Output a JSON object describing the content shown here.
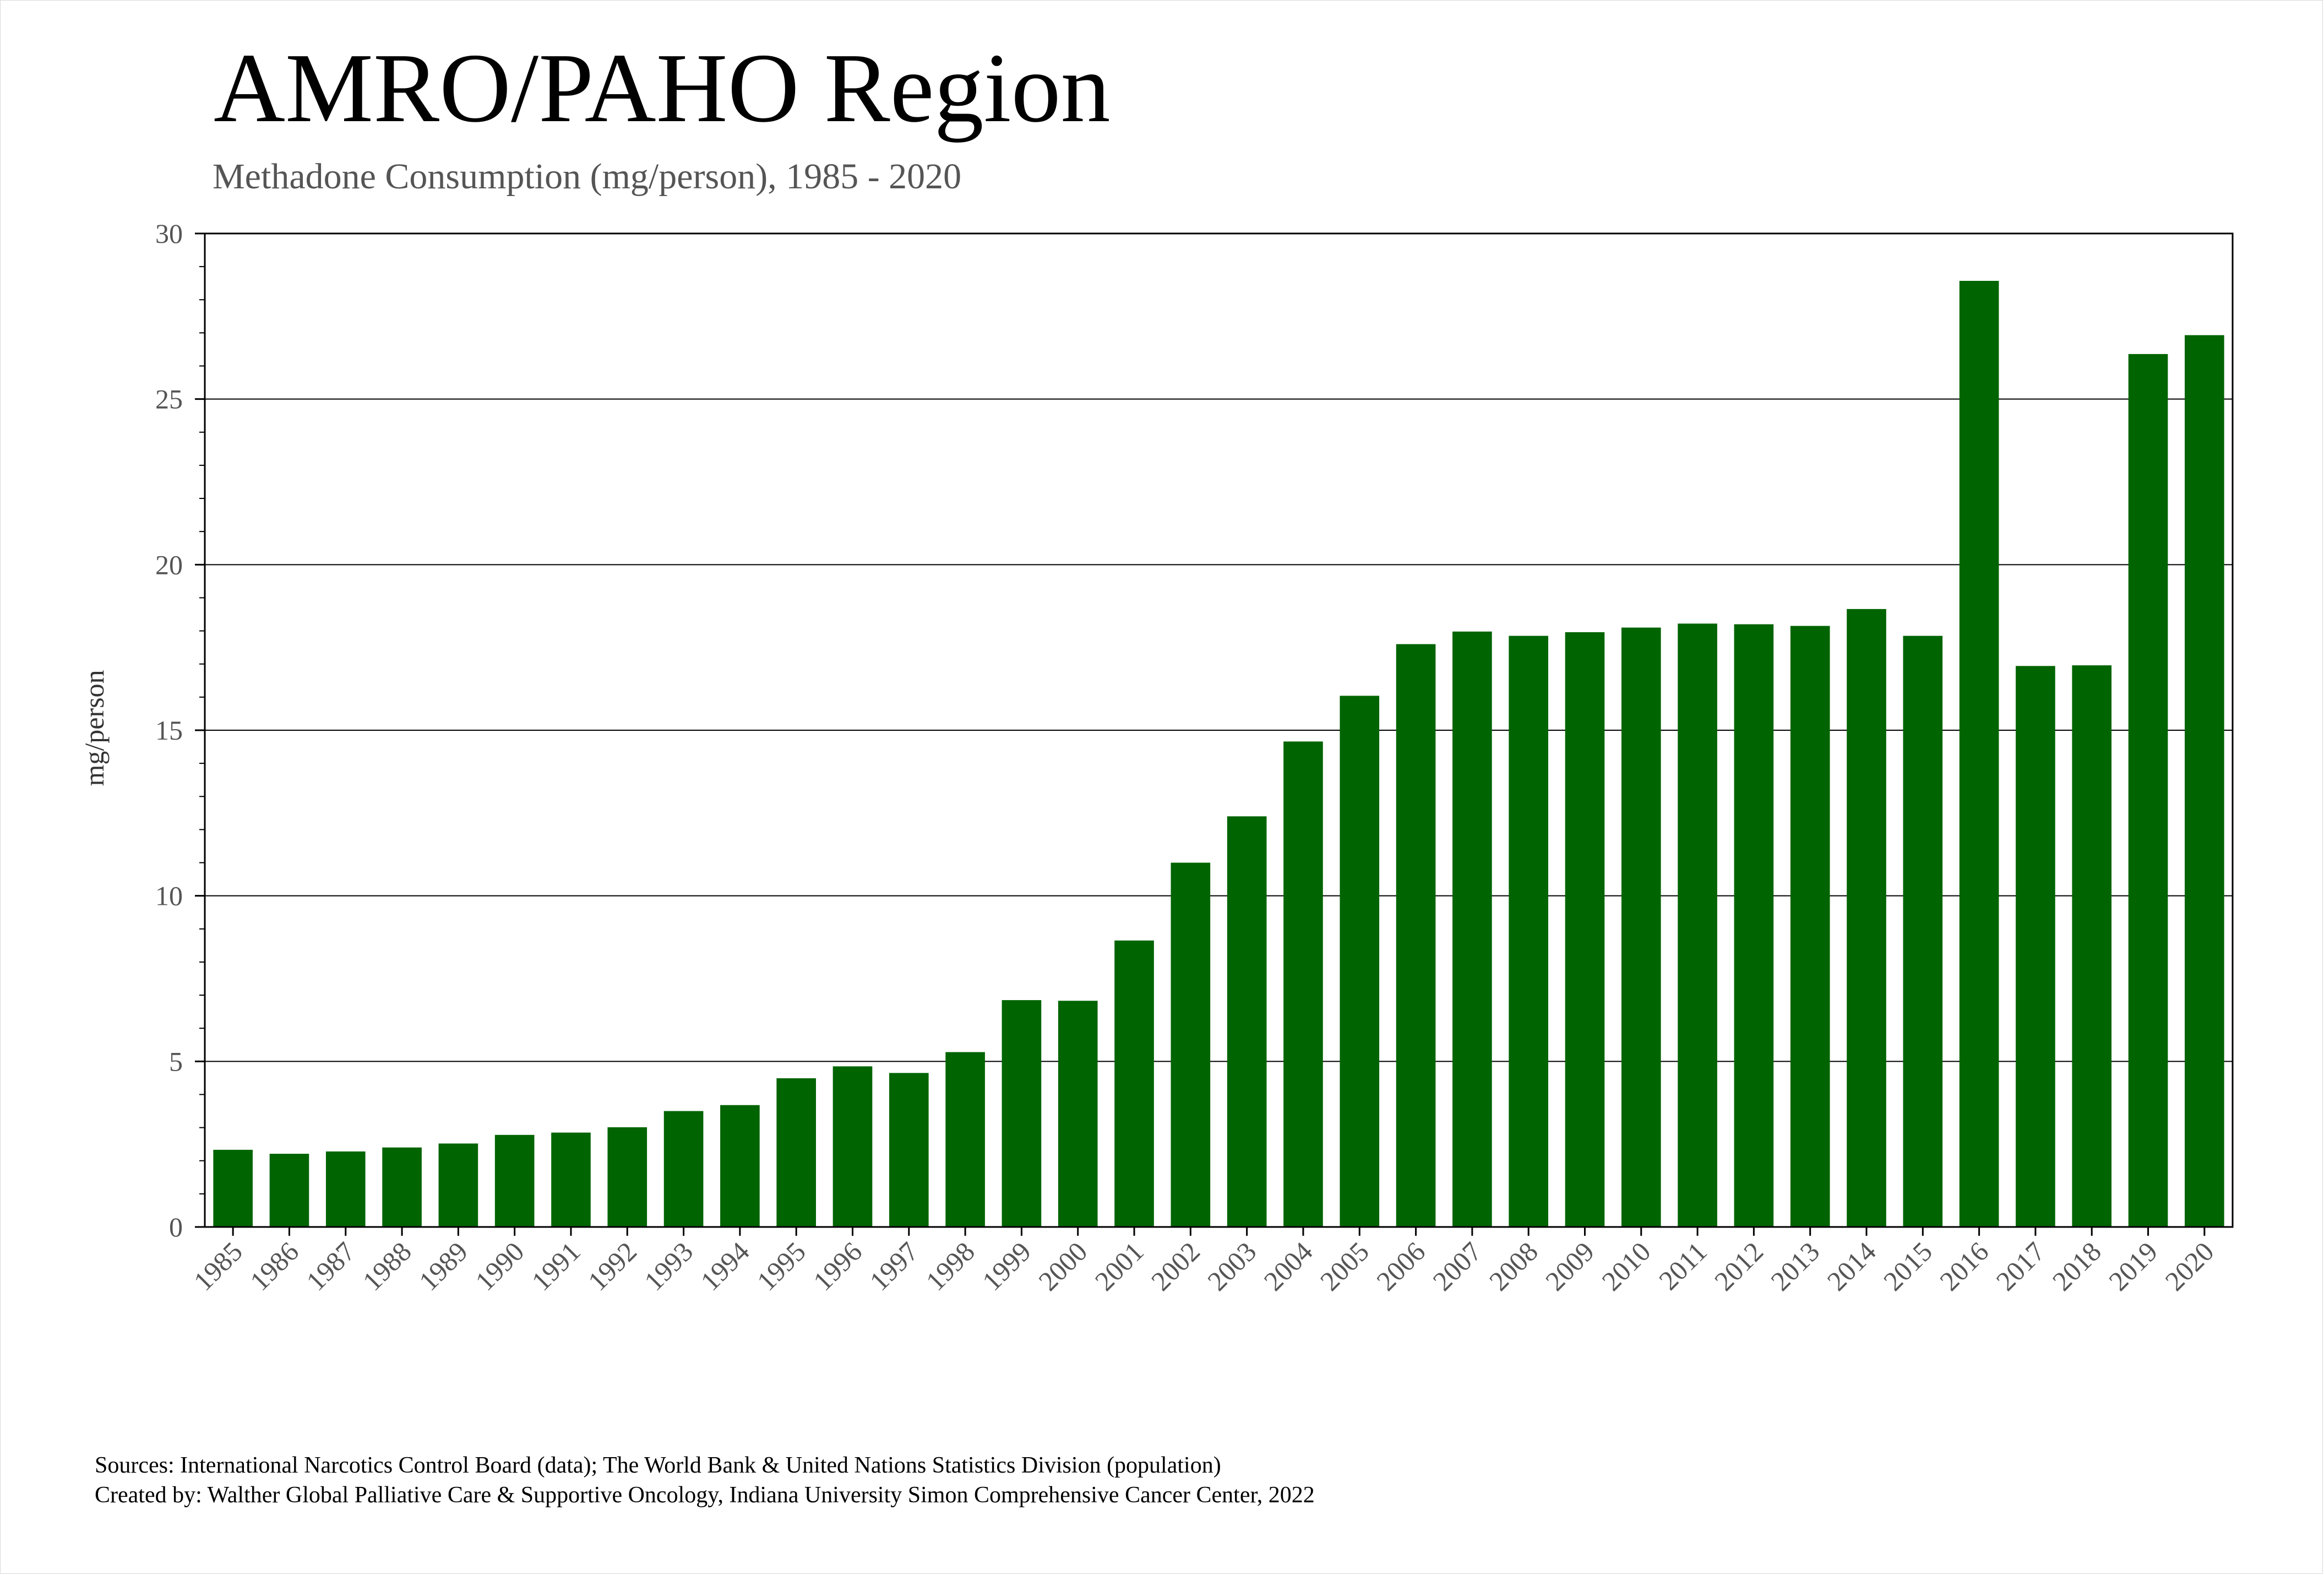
{
  "chart_data": {
    "type": "bar",
    "title": "AMRO/PAHO Region",
    "subtitle": "Methadone Consumption (mg/person), 1985 - 2020",
    "xlabel": "",
    "ylabel": "mg/person",
    "ylim": [
      0,
      30
    ],
    "yticks": [
      0,
      5,
      10,
      15,
      20,
      25,
      30
    ],
    "grid": true,
    "legend": "none",
    "bar_color": "#006400",
    "categories": [
      "1985",
      "1986",
      "1987",
      "1988",
      "1989",
      "1990",
      "1991",
      "1992",
      "1993",
      "1994",
      "1995",
      "1996",
      "1997",
      "1998",
      "1999",
      "2000",
      "2001",
      "2002",
      "2003",
      "2004",
      "2005",
      "2006",
      "2007",
      "2008",
      "2009",
      "2010",
      "2011",
      "2012",
      "2013",
      "2014",
      "2015",
      "2016",
      "2017",
      "2018",
      "2019",
      "2020"
    ],
    "values": [
      2.33,
      2.21,
      2.28,
      2.4,
      2.52,
      2.78,
      2.85,
      3.01,
      3.5,
      3.68,
      4.49,
      4.85,
      4.65,
      5.28,
      6.85,
      6.83,
      8.65,
      11.0,
      12.4,
      14.66,
      16.04,
      17.6,
      17.98,
      17.85,
      17.96,
      18.1,
      18.22,
      18.2,
      18.15,
      18.66,
      17.85,
      28.57,
      16.94,
      16.96,
      26.36,
      26.93
    ]
  },
  "footer": {
    "sources": "Sources: International Narcotics Control Board (data); The World Bank & United Nations Statistics Division (population)",
    "created": "Created by: Walther Global Palliative Care & Supportive Oncology, Indiana University Simon Comprehensive Cancer Center, 2022"
  }
}
